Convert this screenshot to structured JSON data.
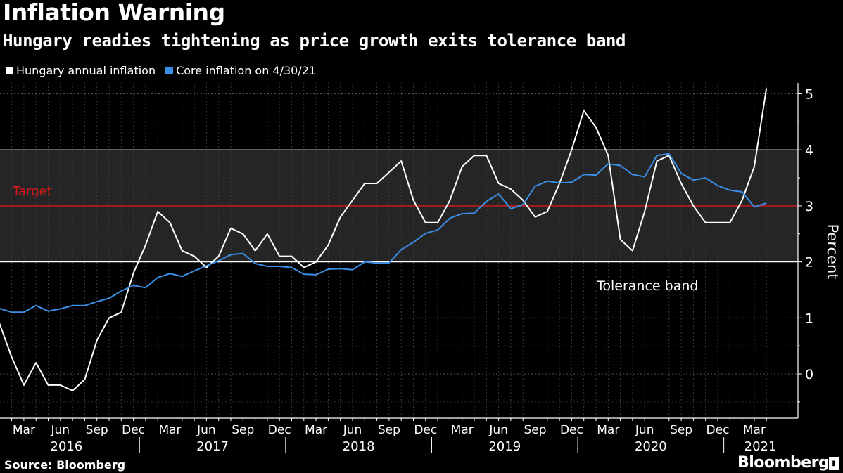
{
  "title": "Inflation Warning",
  "subtitle": "Hungary readies tightening as price growth exits tolerance band",
  "source": "Source: Bloomberg",
  "brand": "Bloomberg",
  "colors": {
    "background": "#000000",
    "headline": "#ffffff",
    "core": "#3a8ee6",
    "target": "#d7191c",
    "band": "#252525"
  },
  "chart_data": {
    "type": "line",
    "title": "Inflation Warning",
    "subtitle": "Hungary readies tightening as price growth exits tolerance band",
    "xlabel": "",
    "ylabel": "Percent",
    "ylim": [
      -0.8,
      5.2
    ],
    "yticks": [
      0,
      1,
      2,
      3,
      4,
      5
    ],
    "grid": true,
    "legend_position": "top-left",
    "x": [
      "Jan 2016",
      "Feb 2016",
      "Mar 2016",
      "Apr 2016",
      "May 2016",
      "Jun 2016",
      "Jul 2016",
      "Aug 2016",
      "Sep 2016",
      "Oct 2016",
      "Nov 2016",
      "Dec 2016",
      "Jan 2017",
      "Feb 2017",
      "Mar 2017",
      "Apr 2017",
      "May 2017",
      "Jun 2017",
      "Jul 2017",
      "Aug 2017",
      "Sep 2017",
      "Oct 2017",
      "Nov 2017",
      "Dec 2017",
      "Jan 2018",
      "Feb 2018",
      "Mar 2018",
      "Apr 2018",
      "May 2018",
      "Jun 2018",
      "Jul 2018",
      "Aug 2018",
      "Sep 2018",
      "Oct 2018",
      "Nov 2018",
      "Dec 2018",
      "Jan 2019",
      "Feb 2019",
      "Mar 2019",
      "Apr 2019",
      "May 2019",
      "Jun 2019",
      "Jul 2019",
      "Aug 2019",
      "Sep 2019",
      "Oct 2019",
      "Nov 2019",
      "Dec 2019",
      "Jan 2020",
      "Feb 2020",
      "Mar 2020",
      "Apr 2020",
      "May 2020",
      "Jun 2020",
      "Jul 2020",
      "Aug 2020",
      "Sep 2020",
      "Oct 2020",
      "Nov 2020",
      "Dec 2020",
      "Jan 2021",
      "Feb 2021",
      "Mar 2021",
      "Apr 2021"
    ],
    "x_tick_labels": [
      "Mar",
      "Jun",
      "Sep",
      "Dec",
      "Mar",
      "Jun",
      "Sep",
      "Dec",
      "Mar",
      "Jun",
      "Sep",
      "Dec",
      "Mar",
      "Jun",
      "Sep",
      "Dec",
      "Mar",
      "Jun",
      "Sep",
      "Dec",
      "Mar"
    ],
    "x_tick_indices": [
      2,
      5,
      8,
      11,
      14,
      17,
      20,
      23,
      26,
      29,
      32,
      35,
      38,
      41,
      44,
      47,
      50,
      53,
      56,
      59,
      62
    ],
    "year_labels": [
      "2016",
      "2017",
      "2018",
      "2019",
      "2020",
      "2021"
    ],
    "year_label_indices": [
      5.5,
      17.5,
      29.5,
      41.5,
      53.5,
      62.5
    ],
    "year_separator_indices": [
      11.5,
      23.5,
      35.5,
      47.5,
      59.5
    ],
    "series": [
      {
        "name": "Hungary annual inflation",
        "color": "#ffffff",
        "values": [
          0.9,
          0.3,
          -0.2,
          0.2,
          -0.2,
          -0.2,
          -0.3,
          -0.1,
          0.6,
          1.0,
          1.1,
          1.8,
          2.3,
          2.9,
          2.7,
          2.2,
          2.1,
          1.9,
          2.1,
          2.6,
          2.5,
          2.2,
          2.5,
          2.1,
          2.1,
          1.9,
          2.0,
          2.3,
          2.8,
          3.1,
          3.4,
          3.4,
          3.6,
          3.8,
          3.1,
          2.7,
          2.7,
          3.1,
          3.7,
          3.9,
          3.9,
          3.4,
          3.3,
          3.1,
          2.8,
          2.9,
          3.4,
          4.0,
          4.7,
          4.4,
          3.9,
          2.4,
          2.2,
          2.9,
          3.8,
          3.9,
          3.4,
          3.0,
          2.7,
          2.7,
          2.7,
          3.1,
          3.7,
          5.1
        ]
      },
      {
        "name": "Core inflation on 4/30/21",
        "color": "#3a8ee6",
        "values": [
          1.17,
          1.1,
          1.1,
          1.22,
          1.12,
          1.16,
          1.22,
          1.22,
          1.29,
          1.35,
          1.48,
          1.58,
          1.54,
          1.72,
          1.79,
          1.74,
          1.84,
          1.93,
          2.02,
          2.13,
          2.15,
          1.97,
          1.92,
          1.92,
          1.9,
          1.78,
          1.77,
          1.87,
          1.88,
          1.86,
          2.0,
          1.98,
          1.98,
          2.22,
          2.35,
          2.51,
          2.57,
          2.78,
          2.86,
          2.87,
          3.08,
          3.21,
          2.95,
          3.02,
          3.35,
          3.44,
          3.41,
          3.42,
          3.56,
          3.55,
          3.75,
          3.72,
          3.56,
          3.52,
          3.9,
          3.93,
          3.58,
          3.46,
          3.5,
          3.36,
          3.28,
          3.25,
          2.98,
          3.05
        ]
      }
    ],
    "annotations": {
      "target_value": 3,
      "target_label": "Target",
      "band_range": [
        2,
        4
      ],
      "band_label": "Tolerance band"
    }
  }
}
